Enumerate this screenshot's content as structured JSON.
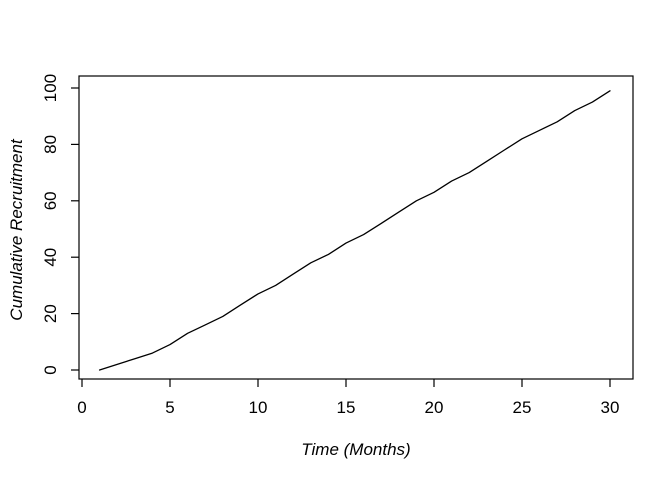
{
  "figure": {
    "background_color": "#ffffff",
    "line_color": "#000000",
    "text_color": "#000000"
  },
  "chart_data": {
    "type": "line",
    "title": "",
    "xlabel": "Time (Months)",
    "ylabel": "Cumulative Recruitment",
    "x_ticks": [
      0,
      5,
      10,
      15,
      20,
      25,
      30
    ],
    "y_ticks": [
      0,
      20,
      40,
      60,
      80,
      100
    ],
    "xlim": [
      0,
      31
    ],
    "ylim": [
      0,
      100
    ],
    "grid": false,
    "legend": "none",
    "frame": "full-box",
    "series": [
      {
        "name": "cumulative-recruitment",
        "x": [
          1,
          2,
          3,
          4,
          5,
          6,
          7,
          8,
          9,
          10,
          11,
          12,
          13,
          14,
          15,
          16,
          17,
          18,
          19,
          20,
          21,
          22,
          23,
          24,
          25,
          26,
          27,
          28,
          29,
          30
        ],
        "y": [
          0,
          2,
          4,
          6,
          9,
          13,
          16,
          19,
          23,
          27,
          30,
          34,
          38,
          41,
          45,
          48,
          52,
          56,
          60,
          63,
          67,
          70,
          74,
          78,
          82,
          85,
          88,
          92,
          95,
          99
        ]
      }
    ]
  }
}
